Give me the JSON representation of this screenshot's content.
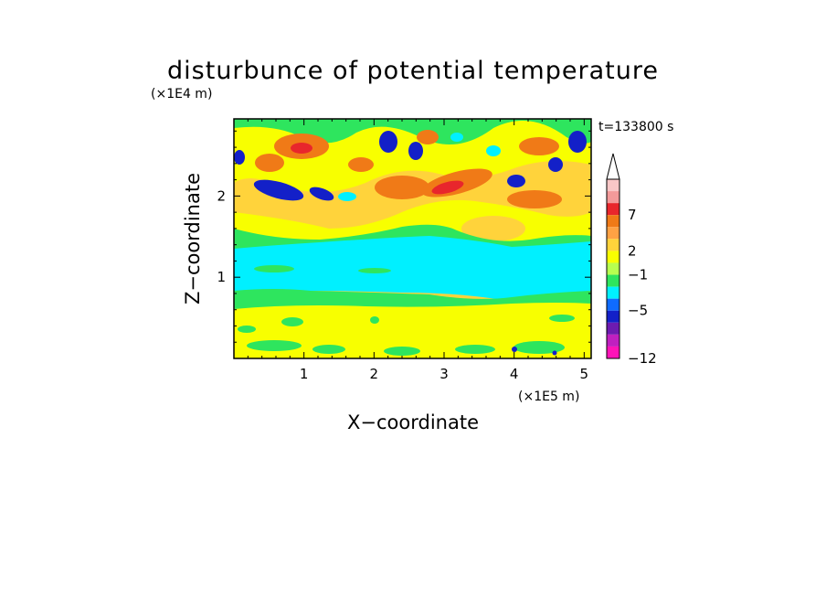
{
  "chart_data": {
    "type": "heatmap",
    "title": "disturbunce of potential temperature",
    "time_label": "t=133800 s",
    "xlabel": "X−coordinate",
    "ylabel": "Z−coordinate",
    "x_unit": "(×1E5 m)",
    "y_unit": "(×1E4 m)",
    "x_ticks": [
      "1",
      "2",
      "3",
      "4",
      "5"
    ],
    "x_tick_values": [
      1,
      2,
      3,
      4,
      5
    ],
    "y_ticks": [
      "1",
      "2"
    ],
    "y_tick_values": [
      1,
      2
    ],
    "xlim": [
      0,
      5.1
    ],
    "ylim": [
      0,
      2.95
    ],
    "colorbar": {
      "labels": [
        "7",
        "2",
        "−1",
        "−5",
        "−12"
      ],
      "colors_top_to_bottom": [
        "#f9c7c7",
        "#f39a9a",
        "#e8262c",
        "#f07a17",
        "#ffa244",
        "#ffd33b",
        "#f8ff00",
        "#b7ff50",
        "#2ee55e",
        "#00f0ff",
        "#0f6bff",
        "#1320c8",
        "#6d1bb0",
        "#c020c0",
        "#ff13b8"
      ],
      "extend_max": true
    },
    "regions": [
      {
        "zone": "lower layer (z 0–0.7)",
        "color": "#f8ff00",
        "approx_value": 0.5
      },
      {
        "zone": "layer z 0.75–0.9",
        "color": "#2ee55e",
        "approx_value": -0.5
      },
      {
        "zone": "mid layer (z 0.85–1.6)",
        "color": "#00f0ff",
        "approx_value": -1.5
      },
      {
        "zone": "z 1.3–1.8",
        "color": "#b7ff50",
        "approx_value": 0
      },
      {
        "zone": "upper wave region (z 1.6–2.95)",
        "color": "#ffd33b",
        "approx_value": 1.5
      },
      {
        "zone": "upper wave crests",
        "color": "#f07a17",
        "approx_value": 3
      },
      {
        "zone": "upper wave troughs",
        "color": "#1320c8",
        "approx_value": -5
      }
    ]
  }
}
